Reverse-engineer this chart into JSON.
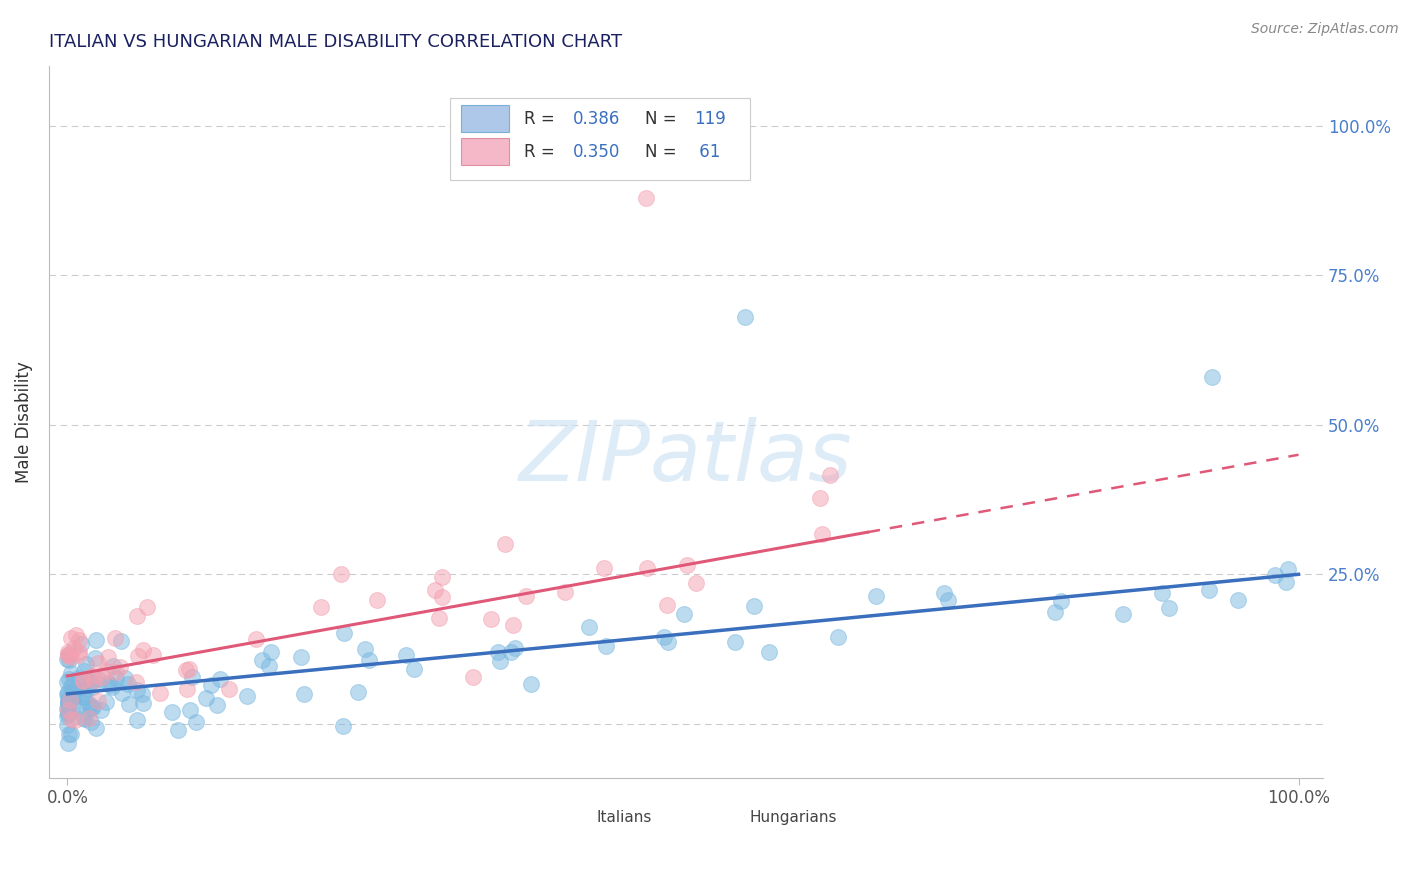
{
  "title": "ITALIAN VS HUNGARIAN MALE DISABILITY CORRELATION CHART",
  "source": "Source: ZipAtlas.com",
  "ylabel": "Male Disability",
  "italian_color": "#7ab8e0",
  "italian_edge_color": "#5a9ac8",
  "hungarian_color": "#f4a0b0",
  "hungarian_edge_color": "#e07090",
  "italian_line_color": "#3a6fbe",
  "hungarian_line_color": "#e05878",
  "italian_R": "0.386",
  "italian_N": "119",
  "hungarian_R": "0.350",
  "hungarian_N": "61",
  "legend_label_italian": "Italians",
  "legend_label_hungarian": "Hungarians",
  "title_color": "#1a2060",
  "source_color": "#888888",
  "axis_label_color": "#333333",
  "right_tick_color": "#4a7fcb",
  "grid_color": "#cccccc",
  "watermark": "ZIPatlas",
  "watermark_color": "#d0e4f5",
  "legend_box_color": "#adc8e8",
  "legend_box_edge": "#7bafd4",
  "legend_pink_color": "#f4b8c8",
  "legend_pink_edge": "#e090a0",
  "legend_text_color": "#333333",
  "legend_value_color": "#3a70c0",
  "ytick_vals": [
    0.0,
    0.25,
    0.5,
    0.75,
    1.0
  ],
  "ytick_labels": [
    "",
    "25.0%",
    "50.0%",
    "75.0%",
    "100.0%"
  ],
  "xtick_vals": [
    0.0,
    1.0
  ],
  "xtick_labels": [
    "0.0%",
    "100.0%"
  ]
}
